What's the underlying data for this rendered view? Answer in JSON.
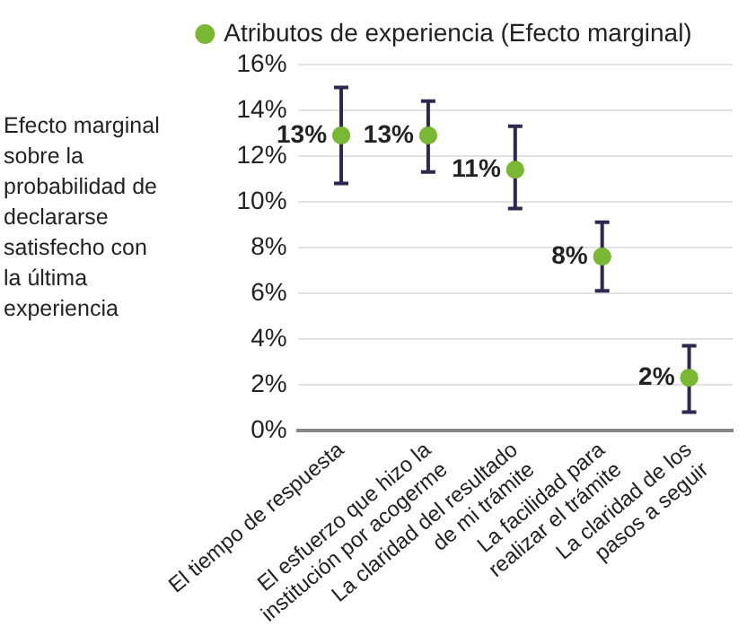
{
  "chart_data": {
    "type": "scatter",
    "ylabel": "Efecto marginal sobre la probabilidad de declararse satisfecho con la última experiencia",
    "categories": [
      "El tiempo de respuesta",
      "El esfuerzo que hizo la\ninstitución por acogerme",
      "La claridad del resultado\nde mi trámite",
      "La facilidad para\nrealizar el trámite",
      "La claridad de los\npasos a seguir"
    ],
    "series": [
      {
        "name": "Atributos de experiencia (Efecto marginal)",
        "color": "#7ab833",
        "values": [
          12.9,
          12.9,
          11.4,
          7.6,
          2.3
        ],
        "errors": [
          [
            10.8,
            15.0
          ],
          [
            11.3,
            14.4
          ],
          [
            9.7,
            13.3
          ],
          [
            6.1,
            9.1
          ],
          [
            0.8,
            3.7
          ]
        ],
        "value_labels": [
          "13%",
          "13%",
          "11%",
          "8%",
          "2%"
        ]
      }
    ],
    "ylim": [
      0,
      16
    ],
    "yticks": [
      {
        "value": 0,
        "label": "0%"
      },
      {
        "value": 2,
        "label": "2%"
      },
      {
        "value": 4,
        "label": "4%"
      },
      {
        "value": 6,
        "label": "6%"
      },
      {
        "value": 8,
        "label": "8%"
      },
      {
        "value": 10,
        "label": "10%"
      },
      {
        "value": 12,
        "label": "12%"
      },
      {
        "value": 14,
        "label": "14%"
      },
      {
        "value": 16,
        "label": "16%"
      }
    ],
    "grid": "y",
    "legend": "top",
    "marker": "circle"
  }
}
